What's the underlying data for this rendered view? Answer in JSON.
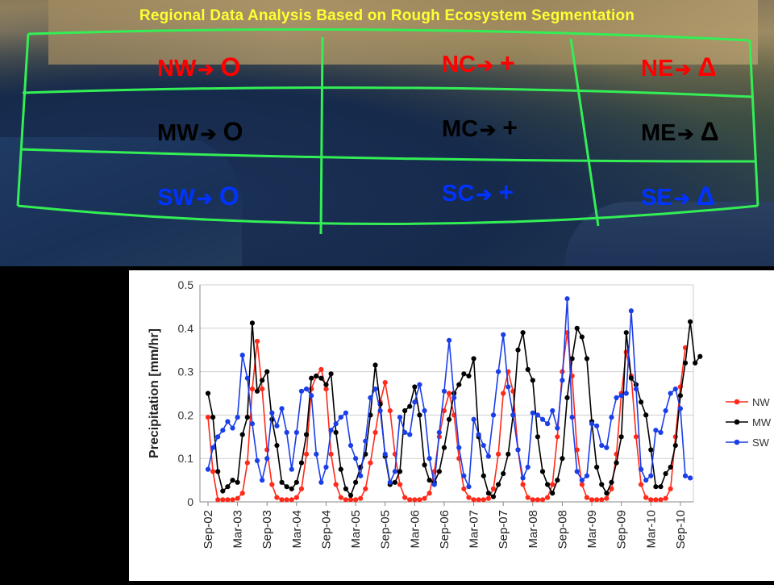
{
  "map": {
    "title": "Regional Data Analysis Based on Rough Ecosystem Segmentation",
    "regions": [
      {
        "code": "NW",
        "symbol": "O",
        "color": "#ff0000"
      },
      {
        "code": "NC",
        "symbol": "+",
        "color": "#ff0000"
      },
      {
        "code": "NE",
        "symbol": "Δ",
        "color": "#ff0000"
      },
      {
        "code": "MW",
        "symbol": "O",
        "color": "#000000"
      },
      {
        "code": "MC",
        "symbol": "+",
        "color": "#000000"
      },
      {
        "code": "ME",
        "symbol": "Δ",
        "color": "#000000"
      },
      {
        "code": "SW",
        "symbol": "O",
        "color": "#0033ff"
      },
      {
        "code": "SC",
        "symbol": "+",
        "color": "#0033ff"
      },
      {
        "code": "SE",
        "symbol": "Δ",
        "color": "#0033ff"
      }
    ],
    "grid_color": "#33ee55"
  },
  "chart_data": {
    "type": "line",
    "ylabel": "Precipitation [mm/hr]",
    "ylim": [
      0,
      0.5
    ],
    "yticks": [
      "0",
      "0.1",
      "0.2",
      "0.3",
      "0.4",
      "0.5"
    ],
    "xticks": [
      "Sep-02",
      "Mar-03",
      "Sep-03",
      "Mar-04",
      "Sep-04",
      "Mar-05",
      "Sep-05",
      "Mar-06",
      "Sep-06",
      "Mar-07",
      "Sep-07",
      "Mar-08",
      "Sep-08",
      "Mar-09",
      "Sep-09",
      "Mar-10",
      "Sep-10"
    ],
    "x_start_month": "Sep-02",
    "grid": "horizontal",
    "legend": "right",
    "series": [
      {
        "name": "NW",
        "color": "#ff2a1a",
        "values": [
          0.195,
          0.07,
          0.005,
          0.005,
          0.005,
          0.005,
          0.008,
          0.02,
          0.09,
          0.26,
          0.37,
          0.26,
          0.12,
          0.04,
          0.01,
          0.005,
          0.005,
          0.005,
          0.01,
          0.03,
          0.11,
          0.26,
          0.29,
          0.305,
          0.26,
          0.11,
          0.04,
          0.01,
          0.005,
          0.005,
          0.005,
          0.008,
          0.03,
          0.09,
          0.16,
          0.23,
          0.275,
          0.21,
          0.11,
          0.04,
          0.01,
          0.005,
          0.005,
          0.005,
          0.008,
          0.02,
          0.07,
          0.15,
          0.21,
          0.25,
          0.2,
          0.1,
          0.03,
          0.01,
          0.005,
          0.005,
          0.005,
          0.008,
          0.03,
          0.11,
          0.25,
          0.3,
          0.255,
          0.12,
          0.04,
          0.01,
          0.005,
          0.005,
          0.005,
          0.01,
          0.04,
          0.15,
          0.3,
          0.39,
          0.29,
          0.12,
          0.04,
          0.01,
          0.005,
          0.005,
          0.005,
          0.008,
          0.03,
          0.11,
          0.25,
          0.345,
          0.29,
          0.15,
          0.04,
          0.01,
          0.005,
          0.005,
          0.005,
          0.008,
          0.03,
          0.15,
          0.265,
          0.355
        ]
      },
      {
        "name": "MW",
        "color": "#000000",
        "values": [
          0.25,
          0.195,
          0.07,
          0.025,
          0.035,
          0.05,
          0.045,
          0.155,
          0.195,
          0.412,
          0.255,
          0.28,
          0.3,
          0.19,
          0.13,
          0.045,
          0.035,
          0.03,
          0.045,
          0.09,
          0.155,
          0.285,
          0.29,
          0.285,
          0.27,
          0.295,
          0.16,
          0.075,
          0.03,
          0.015,
          0.045,
          0.08,
          0.11,
          0.2,
          0.315,
          0.225,
          0.105,
          0.04,
          0.045,
          0.07,
          0.21,
          0.22,
          0.265,
          0.2,
          0.085,
          0.05,
          0.045,
          0.07,
          0.125,
          0.19,
          0.25,
          0.27,
          0.295,
          0.29,
          0.33,
          0.15,
          0.06,
          0.02,
          0.012,
          0.04,
          0.065,
          0.11,
          0.2,
          0.35,
          0.39,
          0.305,
          0.28,
          0.15,
          0.07,
          0.04,
          0.02,
          0.05,
          0.1,
          0.24,
          0.33,
          0.4,
          0.38,
          0.33,
          0.185,
          0.08,
          0.04,
          0.02,
          0.045,
          0.09,
          0.15,
          0.39,
          0.285,
          0.27,
          0.23,
          0.2,
          0.12,
          0.035,
          0.035,
          0.065,
          0.08,
          0.13,
          0.245,
          0.32,
          0.415,
          0.32,
          0.335
        ]
      },
      {
        "name": "SW",
        "color": "#1a3ee8",
        "values": [
          0.075,
          0.125,
          0.15,
          0.165,
          0.185,
          0.17,
          0.195,
          0.338,
          0.285,
          0.18,
          0.095,
          0.05,
          0.1,
          0.205,
          0.175,
          0.215,
          0.16,
          0.075,
          0.16,
          0.255,
          0.26,
          0.245,
          0.11,
          0.045,
          0.08,
          0.165,
          0.18,
          0.195,
          0.205,
          0.13,
          0.1,
          0.06,
          0.14,
          0.24,
          0.26,
          0.21,
          0.11,
          0.045,
          0.07,
          0.195,
          0.16,
          0.155,
          0.23,
          0.27,
          0.21,
          0.1,
          0.04,
          0.16,
          0.255,
          0.372,
          0.24,
          0.125,
          0.06,
          0.035,
          0.19,
          0.155,
          0.13,
          0.105,
          0.2,
          0.3,
          0.385,
          0.265,
          0.2,
          0.12,
          0.055,
          0.08,
          0.205,
          0.2,
          0.19,
          0.18,
          0.21,
          0.17,
          0.28,
          0.468,
          0.195,
          0.07,
          0.05,
          0.06,
          0.18,
          0.175,
          0.13,
          0.125,
          0.195,
          0.24,
          0.245,
          0.25,
          0.44,
          0.26,
          0.075,
          0.05,
          0.06,
          0.165,
          0.16,
          0.21,
          0.25,
          0.26,
          0.215,
          0.06,
          0.055
        ]
      }
    ]
  }
}
